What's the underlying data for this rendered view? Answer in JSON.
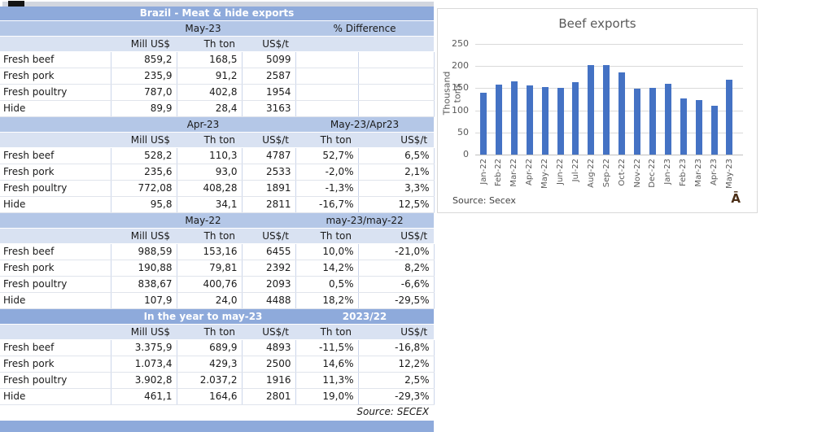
{
  "colors": {
    "header_blue": "#8EAADB",
    "subheader_blue": "#B4C7E7",
    "column_header_blue": "#D9E2F2",
    "bar_blue": "#4472C4"
  },
  "table": {
    "title": "Brazil - Meat & hide exports",
    "footer": "Source: SECEX",
    "sections": [
      {
        "period_label": "May-23",
        "diff_label": "% Difference",
        "style": "light",
        "col_headers": [
          "Mill US$",
          "Th ton",
          "US$/t",
          "",
          ""
        ],
        "rows": [
          {
            "name": "Fresh beef",
            "values": [
              "859,2",
              "168,5",
              "5099",
              "",
              ""
            ]
          },
          {
            "name": "Fresh pork",
            "values": [
              "235,9",
              "91,2",
              "2587",
              "",
              ""
            ]
          },
          {
            "name": "Fresh poultry",
            "values": [
              "787,0",
              "402,8",
              "1954",
              "",
              ""
            ]
          },
          {
            "name": "Hide",
            "values": [
              "89,9",
              "28,4",
              "3163",
              "",
              ""
            ]
          }
        ]
      },
      {
        "period_label": "Apr-23",
        "diff_label": "May-23/Apr23",
        "style": "light",
        "col_headers": [
          "Mill US$",
          "Th ton",
          "US$/t",
          "Th ton",
          "US$/t"
        ],
        "rows": [
          {
            "name": "Fresh beef",
            "values": [
              "528,2",
              "110,3",
              "4787",
              "52,7%",
              "6,5%"
            ]
          },
          {
            "name": "Fresh pork",
            "values": [
              "235,6",
              "93,0",
              "2533",
              "-2,0%",
              "2,1%"
            ]
          },
          {
            "name": "Fresh poultry",
            "values": [
              "772,08",
              "408,28",
              "1891",
              "-1,3%",
              "3,3%"
            ]
          },
          {
            "name": "Hide",
            "values": [
              "95,8",
              "34,1",
              "2811",
              "-16,7%",
              "12,5%"
            ]
          }
        ]
      },
      {
        "period_label": "May-22",
        "diff_label": "may-23/may-22",
        "style": "light",
        "col_headers": [
          "Mill US$",
          "Th ton",
          "US$/t",
          "Th ton",
          "US$/t"
        ],
        "rows": [
          {
            "name": "Fresh beef",
            "values": [
              "988,59",
              "153,16",
              "6455",
              "10,0%",
              "-21,0%"
            ]
          },
          {
            "name": "Fresh pork",
            "values": [
              "190,88",
              "79,81",
              "2392",
              "14,2%",
              "8,2%"
            ]
          },
          {
            "name": "Fresh poultry",
            "values": [
              "838,67",
              "400,76",
              "2093",
              "0,5%",
              "-6,6%"
            ]
          },
          {
            "name": "Hide",
            "values": [
              "107,9",
              "24,0",
              "4488",
              "18,2%",
              "-29,5%"
            ]
          }
        ]
      },
      {
        "period_label": "In the year to may-23",
        "diff_label": "2023/22",
        "style": "dark",
        "col_headers": [
          "Mill US$",
          "Th ton",
          "US$/t",
          "Th ton",
          "US$/t"
        ],
        "rows": [
          {
            "name": "Fresh beef",
            "values": [
              "3.375,9",
              "689,9",
              "4893",
              "-11,5%",
              "-16,8%"
            ]
          },
          {
            "name": "Fresh pork",
            "values": [
              "1.073,4",
              "429,3",
              "2500",
              "14,6%",
              "12,2%"
            ]
          },
          {
            "name": "Fresh poultry",
            "values": [
              "3.902,8",
              "2.037,2",
              "1916",
              "11,3%",
              "2,5%"
            ]
          },
          {
            "name": "Hide",
            "values": [
              "461,1",
              "164,6",
              "2801",
              "19,0%",
              "-29,3%"
            ]
          }
        ]
      }
    ]
  },
  "chart_data": {
    "type": "bar",
    "title": "Beef exports",
    "ylabel": "Thousand tons",
    "xlabel": "",
    "source": "Source: Secex",
    "stray_glyph": "Ā",
    "categories": [
      "Jan-22",
      "Feb-22",
      "Mar-22",
      "Apr-22",
      "May-22",
      "Jun-22",
      "Jul-22",
      "Aug-22",
      "Sep-22",
      "Oct-22",
      "Nov-22",
      "Dec-22",
      "Jan-23",
      "Feb-23",
      "Mar-23",
      "Apr-23",
      "May-23"
    ],
    "values": [
      140,
      158,
      166,
      156,
      153,
      150,
      163,
      202,
      202,
      186,
      148,
      151,
      159,
      126,
      123,
      110,
      168
    ],
    "ylim": [
      0,
      250
    ],
    "ytick_step": 50,
    "grid": true,
    "legend": false,
    "bar_color": "#4472C4"
  }
}
